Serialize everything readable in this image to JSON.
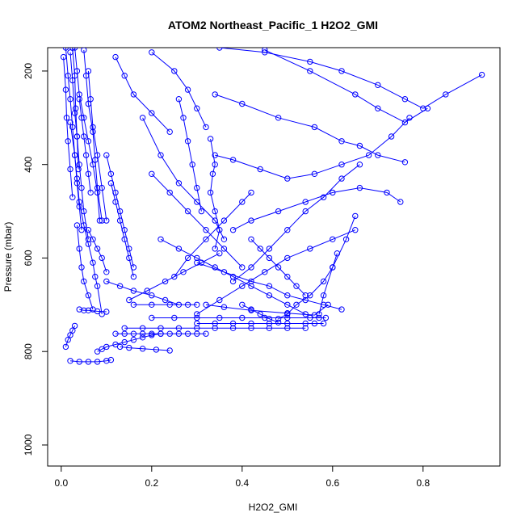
{
  "chart_data": {
    "type": "line",
    "title": "ATOM2 Northeast_Pacific_1 H2O2_GMI",
    "xlabel": "H2O2_GMI",
    "ylabel": "Pressure (mbar)",
    "xlim": [
      -0.03,
      0.97
    ],
    "ylim": [
      1045,
      150
    ],
    "y_reversed": true,
    "x_ticks": [
      "0.0",
      "0.2",
      "0.4",
      "0.6",
      "0.8"
    ],
    "x_tick_values": [
      0,
      0.2,
      0.4,
      0.6,
      0.8
    ],
    "y_ticks": [
      "200",
      "400",
      "600",
      "800",
      "1000"
    ],
    "y_tick_values": [
      200,
      400,
      600,
      800,
      1000
    ],
    "marker": "open-circle",
    "grid": false,
    "color": "#0000ff",
    "series": [
      {
        "x": [
          0.01,
          0.015,
          0.02,
          0.025,
          0.03,
          0.035,
          0.04,
          0.05,
          0.06,
          0.07,
          0.075,
          0.08,
          0.09
        ],
        "y": [
          150,
          210,
          260,
          320,
          380,
          430,
          480,
          530,
          570,
          610,
          640,
          660,
          720
        ]
      },
      {
        "x": [
          0.02,
          0.025,
          0.03,
          0.035,
          0.04,
          0.045,
          0.05,
          0.06
        ],
        "y": [
          160,
          220,
          290,
          340,
          400,
          450,
          500,
          560
        ]
      },
      {
        "x": [
          0.03,
          0.035,
          0.04,
          0.05,
          0.06,
          0.07,
          0.08,
          0.085
        ],
        "y": [
          150,
          200,
          250,
          300,
          350,
          400,
          460,
          520
        ]
      },
      {
        "x": [
          0.05,
          0.055,
          0.06,
          0.07,
          0.075,
          0.08,
          0.09
        ],
        "y": [
          155,
          210,
          270,
          330,
          390,
          450,
          520
        ]
      },
      {
        "x": [
          0.005,
          0.01,
          0.012,
          0.015,
          0.02,
          0.025
        ],
        "y": [
          170,
          240,
          300,
          350,
          410,
          470
        ]
      },
      {
        "x": [
          0.02,
          0.03,
          0.035,
          0.04,
          0.045
        ],
        "y": [
          310,
          380,
          440,
          490,
          540
        ]
      },
      {
        "x": [
          0.06,
          0.065,
          0.07,
          0.08,
          0.09,
          0.1
        ],
        "y": [
          200,
          260,
          320,
          380,
          450,
          520
        ]
      },
      {
        "x": [
          0.035,
          0.04,
          0.045,
          0.05,
          0.06,
          0.07
        ],
        "y": [
          530,
          580,
          620,
          650,
          680,
          710
        ]
      },
      {
        "x": [
          0.08,
          0.09,
          0.1,
          0.12,
          0.14,
          0.16,
          0.18,
          0.2,
          0.22
        ],
        "y": [
          800,
          795,
          790,
          785,
          780,
          775,
          770,
          765,
          762
        ]
      },
      {
        "x": [
          0.02,
          0.04,
          0.06,
          0.08,
          0.1,
          0.11
        ],
        "y": [
          820,
          822,
          822,
          822,
          820,
          818
        ]
      },
      {
        "x": [
          0.12,
          0.14,
          0.16,
          0.18,
          0.2,
          0.22,
          0.24,
          0.26,
          0.28,
          0.3,
          0.32
        ],
        "y": [
          762,
          762,
          762,
          762,
          762,
          762,
          762,
          762,
          762,
          762,
          762
        ]
      },
      {
        "x": [
          0.3,
          0.34,
          0.38,
          0.42,
          0.46,
          0.5,
          0.54,
          0.56,
          0.58
        ],
        "y": [
          740,
          740,
          740,
          740,
          740,
          740,
          740,
          740,
          740
        ]
      },
      {
        "x": [
          0.2,
          0.25,
          0.3,
          0.35,
          0.4,
          0.45,
          0.5,
          0.55,
          0.57,
          0.585
        ],
        "y": [
          728,
          728,
          728,
          728,
          728,
          728,
          728,
          728,
          728,
          728
        ]
      },
      {
        "x": [
          0.14,
          0.18,
          0.22,
          0.26,
          0.3,
          0.34,
          0.38,
          0.42,
          0.46,
          0.5,
          0.54
        ],
        "y": [
          750,
          750,
          750,
          750,
          750,
          750,
          750,
          750,
          750,
          750,
          750
        ]
      },
      {
        "x": [
          0.01,
          0.015,
          0.02,
          0.025,
          0.03
        ],
        "y": [
          790,
          775,
          765,
          755,
          745
        ]
      },
      {
        "x": [
          0.04,
          0.05,
          0.06,
          0.08,
          0.1
        ],
        "y": [
          710,
          712,
          712,
          714,
          715
        ]
      },
      {
        "x": [
          0.16,
          0.2,
          0.24,
          0.28,
          0.3
        ],
        "y": [
          700,
          700,
          700,
          700,
          700
        ]
      },
      {
        "x": [
          0.32,
          0.36,
          0.42,
          0.5,
          0.56,
          0.59
        ],
        "y": [
          700,
          705,
          712,
          718,
          722,
          700
        ]
      },
      {
        "x": [
          0.12,
          0.14,
          0.16,
          0.2,
          0.24
        ],
        "y": [
          170,
          210,
          250,
          290,
          330
        ]
      },
      {
        "x": [
          0.2,
          0.25,
          0.28,
          0.3,
          0.32
        ],
        "y": [
          160,
          200,
          240,
          280,
          320
        ]
      },
      {
        "x": [
          0.35,
          0.45,
          0.55,
          0.62,
          0.7,
          0.76,
          0.8,
          0.85,
          0.93
        ],
        "y": [
          150,
          160,
          180,
          200,
          230,
          260,
          280,
          250,
          208
        ]
      },
      {
        "x": [
          0.45,
          0.55,
          0.65,
          0.7,
          0.76,
          0.81
        ],
        "y": [
          155,
          200,
          250,
          280,
          310,
          280
        ]
      },
      {
        "x": [
          0.34,
          0.4,
          0.48,
          0.56,
          0.62,
          0.66,
          0.7,
          0.76
        ],
        "y": [
          250,
          270,
          300,
          320,
          350,
          360,
          380,
          395
        ]
      },
      {
        "x": [
          0.33,
          0.34,
          0.335,
          0.33,
          0.34,
          0.35,
          0.34
        ],
        "y": [
          345,
          400,
          420,
          460,
          500,
          540,
          580
        ]
      },
      {
        "x": [
          0.26,
          0.27,
          0.28,
          0.29,
          0.3,
          0.31
        ],
        "y": [
          260,
          300,
          350,
          400,
          450,
          500
        ]
      },
      {
        "x": [
          0.34,
          0.38,
          0.44,
          0.5,
          0.56,
          0.62,
          0.68,
          0.73,
          0.77
        ],
        "y": [
          380,
          390,
          410,
          430,
          420,
          400,
          380,
          340,
          300
        ]
      },
      {
        "x": [
          0.25,
          0.28,
          0.32,
          0.36,
          0.4,
          0.42
        ],
        "y": [
          640,
          600,
          560,
          520,
          480,
          460
        ]
      },
      {
        "x": [
          0.22,
          0.26,
          0.3,
          0.34,
          0.38,
          0.42,
          0.46,
          0.5,
          0.54
        ],
        "y": [
          560,
          580,
          600,
          620,
          640,
          660,
          680,
          700,
          720
        ]
      },
      {
        "x": [
          0.38,
          0.42,
          0.46,
          0.5,
          0.54,
          0.58,
          0.62,
          0.66
        ],
        "y": [
          650,
          620,
          580,
          540,
          500,
          470,
          430,
          400
        ]
      },
      {
        "x": [
          0.3,
          0.35,
          0.4,
          0.45,
          0.5,
          0.55,
          0.6,
          0.65
        ],
        "y": [
          720,
          690,
          660,
          630,
          600,
          580,
          560,
          540
        ]
      },
      {
        "x": [
          0.3,
          0.36,
          0.42,
          0.46,
          0.5,
          0.54,
          0.58,
          0.62
        ],
        "y": [
          610,
          630,
          650,
          660,
          680,
          690,
          700,
          710
        ]
      },
      {
        "x": [
          0.42,
          0.44,
          0.46,
          0.48,
          0.5,
          0.52,
          0.54
        ],
        "y": [
          560,
          580,
          600,
          620,
          640,
          660,
          680
        ]
      },
      {
        "x": [
          0.18,
          0.22,
          0.26,
          0.3,
          0.34,
          0.36
        ],
        "y": [
          300,
          380,
          440,
          480,
          520,
          560
        ]
      },
      {
        "x": [
          0.11,
          0.12,
          0.13,
          0.14,
          0.15,
          0.16
        ],
        "y": [
          440,
          480,
          520,
          560,
          600,
          640
        ]
      },
      {
        "x": [
          0.1,
          0.11,
          0.12,
          0.13,
          0.14,
          0.15,
          0.16
        ],
        "y": [
          380,
          420,
          460,
          500,
          540,
          580,
          620
        ]
      },
      {
        "x": [
          0.61,
          0.6,
          0.58,
          0.55,
          0.52,
          0.5,
          0.48
        ],
        "y": [
          590,
          620,
          650,
          680,
          700,
          720,
          730
        ]
      },
      {
        "x": [
          0.65,
          0.63,
          0.6,
          0.58,
          0.57
        ],
        "y": [
          510,
          560,
          620,
          680,
          720
        ]
      },
      {
        "x": [
          0.4,
          0.42,
          0.44,
          0.46,
          0.48
        ],
        "y": [
          700,
          710,
          720,
          730,
          738
        ]
      },
      {
        "x": [
          0.04,
          0.045,
          0.05,
          0.055,
          0.06,
          0.065
        ],
        "y": [
          260,
          300,
          340,
          380,
          420,
          460
        ]
      },
      {
        "x": [
          0.025,
          0.03,
          0.032,
          0.035,
          0.038
        ],
        "y": [
          150,
          210,
          280,
          340,
          410
        ]
      },
      {
        "x": [
          0.06,
          0.07,
          0.08,
          0.09,
          0.1
        ],
        "y": [
          540,
          560,
          580,
          600,
          630
        ]
      },
      {
        "x": [
          0.1,
          0.13,
          0.16,
          0.2,
          0.23,
          0.26
        ],
        "y": [
          650,
          660,
          670,
          680,
          690,
          700
        ]
      },
      {
        "x": [
          0.2,
          0.24,
          0.28,
          0.32,
          0.36,
          0.4
        ],
        "y": [
          420,
          460,
          500,
          540,
          580,
          620
        ]
      },
      {
        "x": [
          0.15,
          0.19,
          0.23,
          0.27,
          0.31,
          0.35
        ],
        "y": [
          690,
          670,
          650,
          630,
          610,
          590
        ]
      },
      {
        "x": [
          0.38,
          0.42,
          0.48,
          0.54,
          0.6,
          0.66,
          0.72,
          0.75
        ],
        "y": [
          540,
          520,
          500,
          480,
          460,
          450,
          460,
          480
        ]
      },
      {
        "x": [
          0.13,
          0.15,
          0.18,
          0.21,
          0.24
        ],
        "y": [
          790,
          792,
          794,
          796,
          798
        ]
      }
    ]
  }
}
